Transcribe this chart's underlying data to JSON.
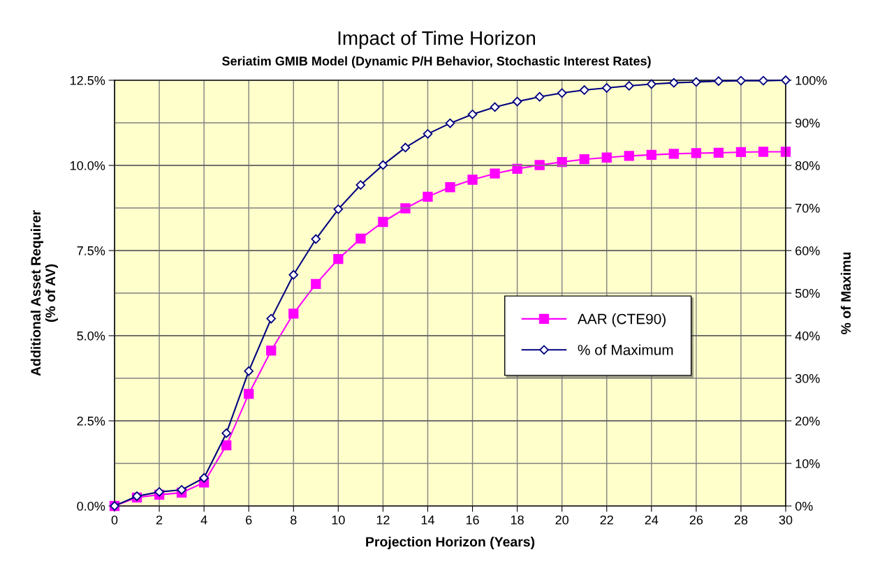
{
  "chart_data": {
    "type": "line",
    "title": "Impact of Time Horizon",
    "subtitle": "Seriatim GMIB Model (Dynamic P/H Behavior, Stochastic Interest Rates)",
    "xlabel": "Projection Horizon (Years)",
    "ylabel": "Additional Asset Requirer\n(% of AV)",
    "y2label": "% of Maximu",
    "x": [
      0,
      1,
      2,
      3,
      4,
      5,
      6,
      7,
      8,
      9,
      10,
      11,
      12,
      13,
      14,
      15,
      16,
      17,
      18,
      19,
      20,
      21,
      22,
      23,
      24,
      25,
      26,
      27,
      28,
      29,
      30
    ],
    "series": [
      {
        "name": "AAR (CTE90)",
        "color": "#ff00ff",
        "marker": "square",
        "values": [
          0,
          0.25,
          0.33,
          0.39,
          0.69,
          1.78,
          3.29,
          4.56,
          5.65,
          6.52,
          7.25,
          7.85,
          8.34,
          8.74,
          9.08,
          9.36,
          9.58,
          9.76,
          9.9,
          10.01,
          10.1,
          10.18,
          10.23,
          10.28,
          10.31,
          10.34,
          10.36,
          10.37,
          10.39,
          10.4,
          10.4
        ]
      },
      {
        "name": "% of Maximum",
        "color": "#000080",
        "marker": "diamond",
        "axis": "y2",
        "values": [
          0,
          2.3,
          3.3,
          3.8,
          6.6,
          17.1,
          31.7,
          44,
          54.3,
          62.7,
          69.7,
          75.4,
          80.1,
          84.2,
          87.4,
          89.9,
          92,
          93.7,
          95,
          96.1,
          97,
          97.7,
          98.2,
          98.7,
          99.1,
          99.4,
          99.6,
          99.8,
          99.9,
          99.9,
          100
        ]
      }
    ],
    "xlim": [
      0,
      30
    ],
    "xticks": [
      0,
      2,
      4,
      6,
      8,
      10,
      12,
      14,
      16,
      18,
      20,
      22,
      24,
      26,
      28,
      30
    ],
    "ylim": [
      0,
      12.5
    ],
    "yticks": [
      {
        "value": 0,
        "label": "0.0%"
      },
      {
        "value": 2.5,
        "label": "2.5%"
      },
      {
        "value": 5,
        "label": "5.0%"
      },
      {
        "value": 7.5,
        "label": "7.5%"
      },
      {
        "value": 10,
        "label": "10.0%"
      },
      {
        "value": 12.5,
        "label": "12.5%"
      }
    ],
    "y2lim": [
      0,
      100
    ],
    "y2ticks": [
      {
        "value": 0,
        "label": "0%"
      },
      {
        "value": 10,
        "label": "10%"
      },
      {
        "value": 20,
        "label": "20%"
      },
      {
        "value": 30,
        "label": "30%"
      },
      {
        "value": 40,
        "label": "40%"
      },
      {
        "value": 50,
        "label": "50%"
      },
      {
        "value": 60,
        "label": "60%"
      },
      {
        "value": 70,
        "label": "70%"
      },
      {
        "value": 80,
        "label": "80%"
      },
      {
        "value": 90,
        "label": "90%"
      },
      {
        "value": 100,
        "label": "100%"
      }
    ],
    "grid": true,
    "legend": "right",
    "line_style": "solid"
  }
}
